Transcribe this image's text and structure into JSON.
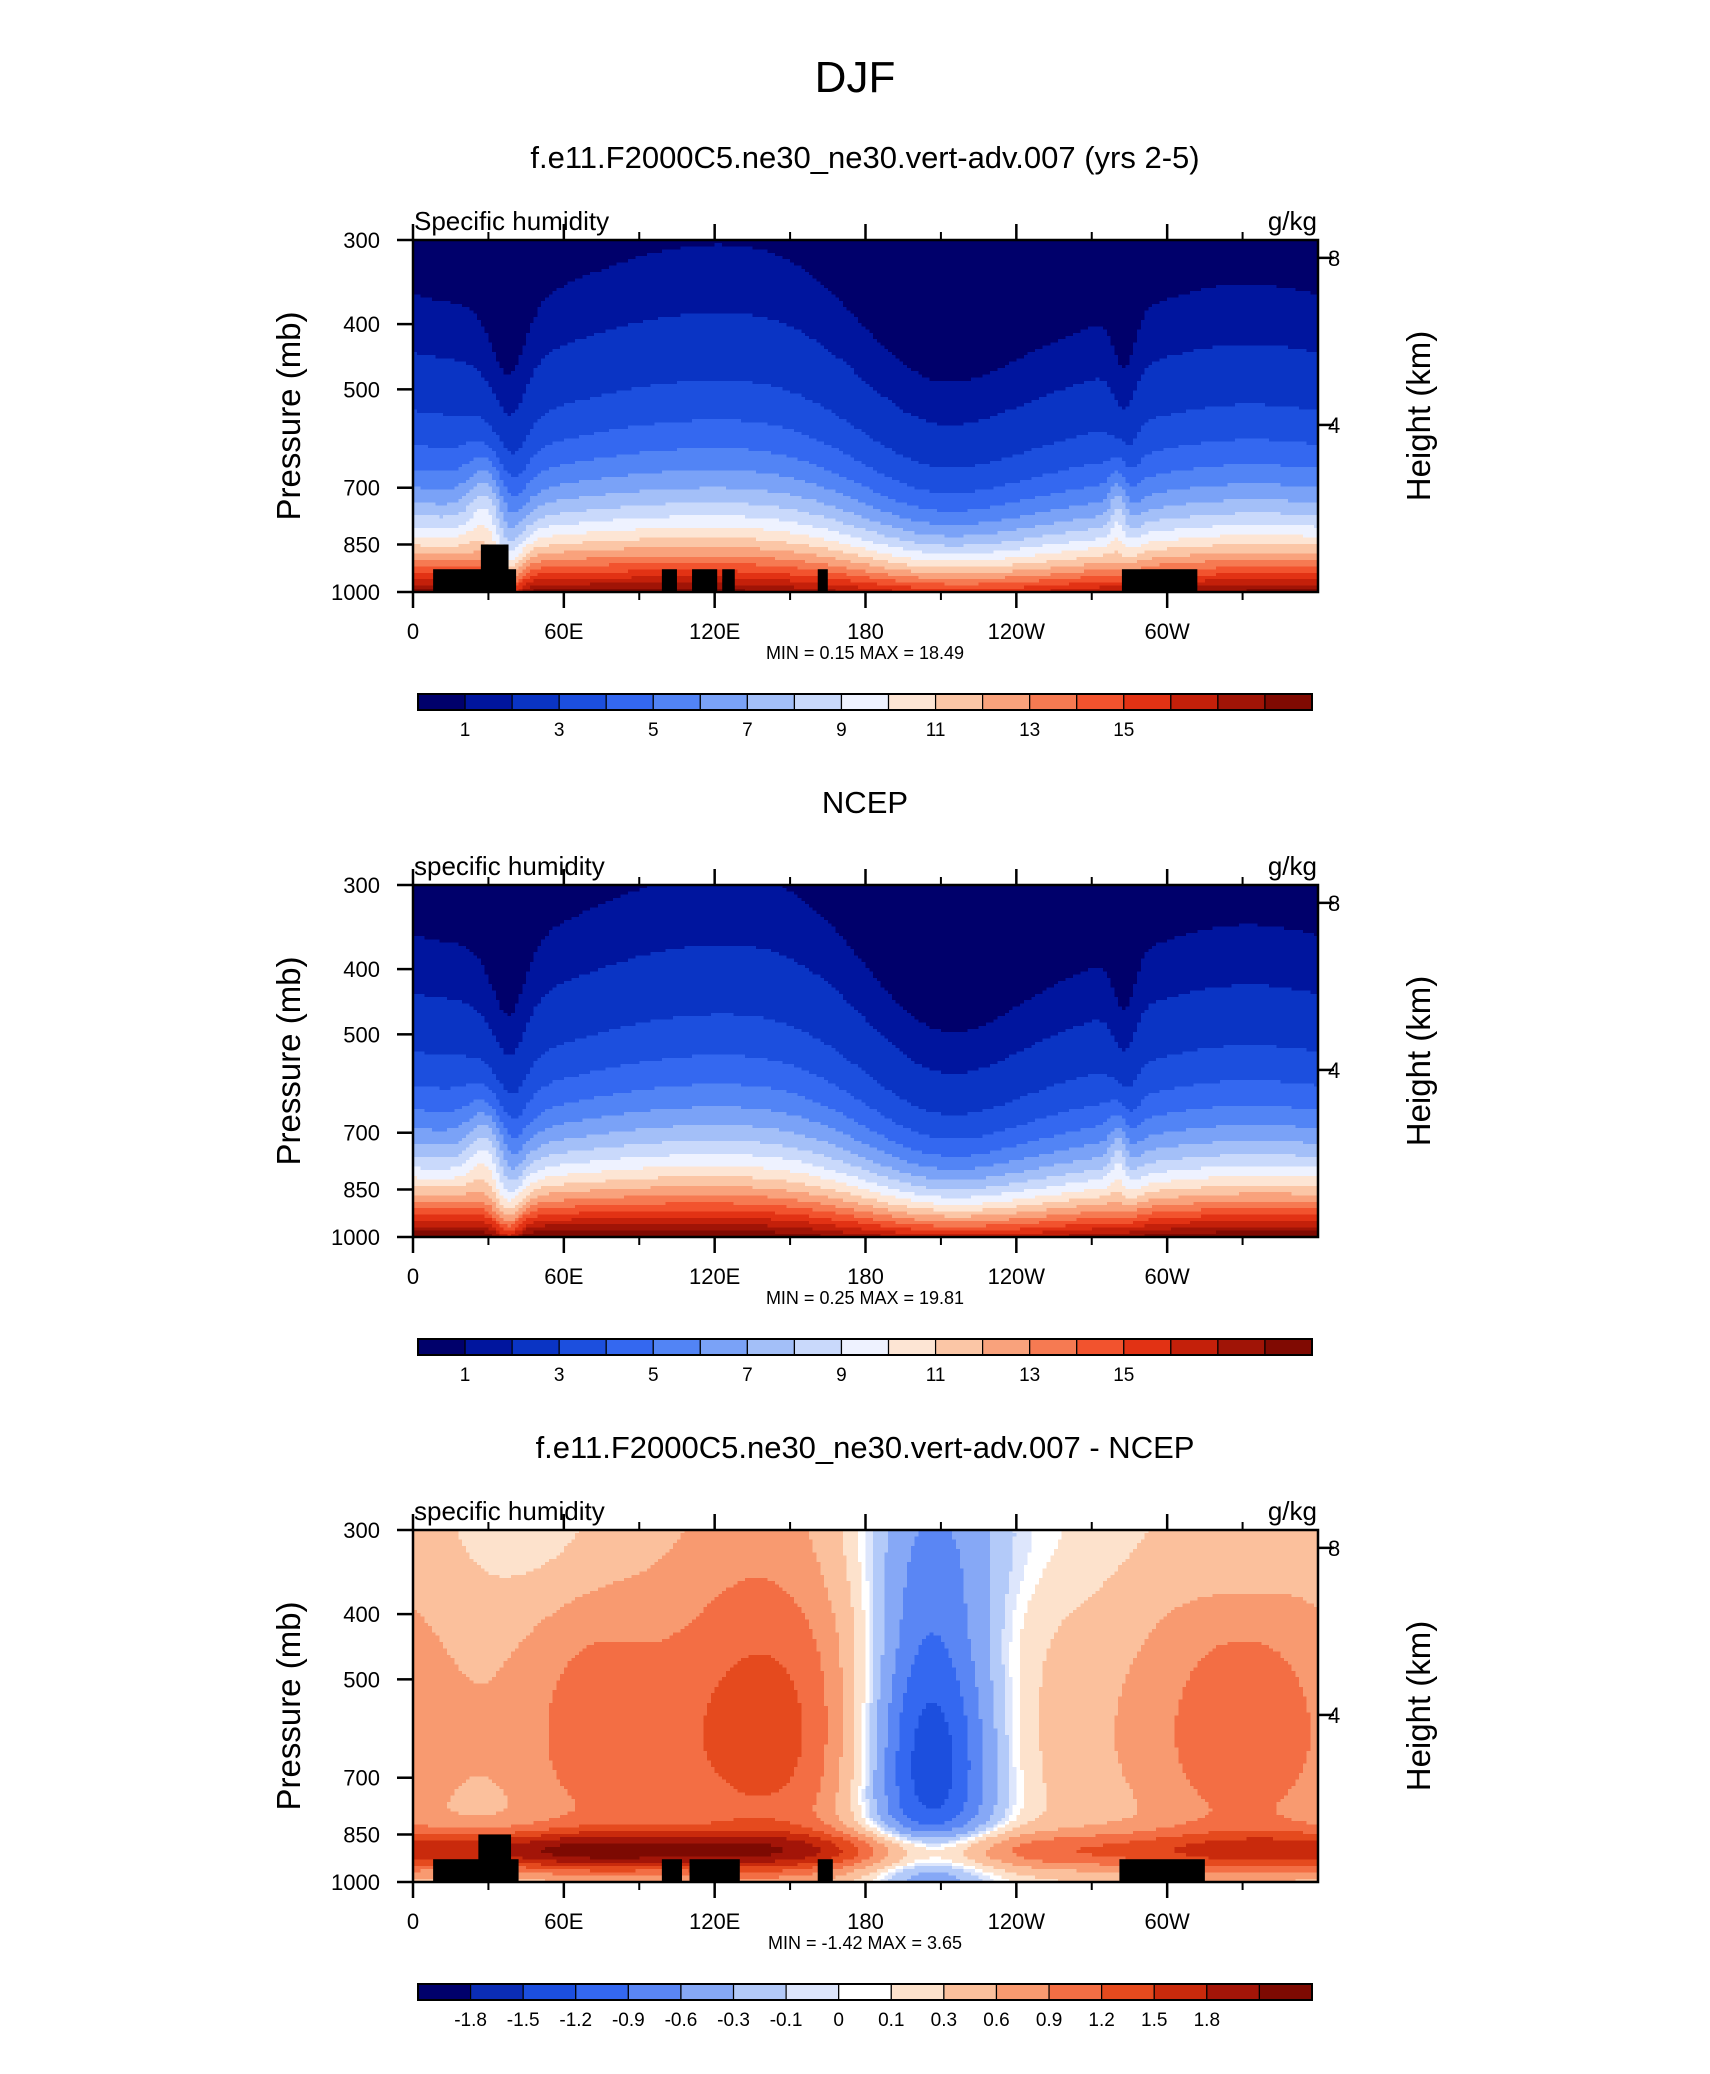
{
  "title": "DJF",
  "colors": {
    "abs_levels": [
      "#00006b",
      "#00159e",
      "#0a34c4",
      "#1c4fde",
      "#3468f0",
      "#5284f5",
      "#7aa2f7",
      "#a3bff8",
      "#c9d9fb",
      "#eef2ff",
      "#fde5d4",
      "#fbc6a6",
      "#f9a27c",
      "#f67a52",
      "#f2532e",
      "#e23214",
      "#c4200a",
      "#a01406",
      "#800a02"
    ],
    "diff_colors": [
      "#00006b",
      "#0b2db5",
      "#1c4fde",
      "#3468f0",
      "#5a86f4",
      "#86a8f6",
      "#b3caf9",
      "#dde6fc",
      "#ffffff",
      "#fde2cc",
      "#fbc09c",
      "#f89a70",
      "#f36e44",
      "#e54a1e",
      "#c92a0c",
      "#a31508",
      "#7d0a02"
    ]
  },
  "chart_data": [
    {
      "type": "heatmap",
      "title": "f.e11.F2000C5.ne30_ne30.vert-adv.007 (yrs 2-5)",
      "left_label": "Specific humidity",
      "right_label": "g/kg",
      "ylabel": "Pressure (mb)",
      "y2label": "Height (km)",
      "field": "model",
      "x_ticks": [
        "0",
        "60E",
        "120E",
        "180",
        "120W",
        "60W"
      ],
      "x_tick_lon": [
        0,
        60,
        120,
        180,
        240,
        300
      ],
      "xlim": [
        0,
        360
      ],
      "y_ticks": [
        "300",
        "400",
        "500",
        "700",
        "850",
        "1000"
      ],
      "y_tick_values": [
        300,
        400,
        500,
        700,
        850,
        1000
      ],
      "ylim": [
        1000,
        300
      ],
      "log_scale_y": true,
      "y2_ticks": [
        "8",
        "4"
      ],
      "y2_tick_values": [
        8,
        4
      ],
      "stats": "MIN =   0.15  MAX =  18.49",
      "colorbar_labels": [
        "1",
        "3",
        "5",
        "7",
        "9",
        "11",
        "13",
        "15"
      ],
      "levels": [
        0.5,
        1,
        2,
        3,
        4,
        5,
        6,
        7,
        8,
        9,
        10,
        11,
        12,
        13,
        14,
        15,
        16,
        17
      ],
      "masks": [
        {
          "lon": [
            8,
            41
          ],
          "p_top": 925
        },
        {
          "lon": [
            27,
            38
          ],
          "p_top": 850
        },
        {
          "lon": [
            99,
            105
          ],
          "p_top": 925
        },
        {
          "lon": [
            111,
            121
          ],
          "p_top": 925
        },
        {
          "lon": [
            123,
            128
          ],
          "p_top": 925
        },
        {
          "lon": [
            161,
            165
          ],
          "p_top": 925
        },
        {
          "lon": [
            282,
            312
          ],
          "p_top": 925
        }
      ]
    },
    {
      "type": "heatmap",
      "title": "NCEP",
      "left_label": "specific humidity",
      "right_label": "g/kg",
      "ylabel": "Pressure (mb)",
      "y2label": "Height (km)",
      "field": "obs",
      "x_ticks": [
        "0",
        "60E",
        "120E",
        "180",
        "120W",
        "60W"
      ],
      "x_tick_lon": [
        0,
        60,
        120,
        180,
        240,
        300
      ],
      "xlim": [
        0,
        360
      ],
      "y_ticks": [
        "300",
        "400",
        "500",
        "700",
        "850",
        "1000"
      ],
      "y_tick_values": [
        300,
        400,
        500,
        700,
        850,
        1000
      ],
      "ylim": [
        1000,
        300
      ],
      "log_scale_y": true,
      "y2_ticks": [
        "8",
        "4"
      ],
      "y2_tick_values": [
        8,
        4
      ],
      "stats": "MIN =   0.25  MAX =  19.81",
      "colorbar_labels": [
        "1",
        "3",
        "5",
        "7",
        "9",
        "11",
        "13",
        "15"
      ],
      "levels": [
        0.5,
        1,
        2,
        3,
        4,
        5,
        6,
        7,
        8,
        9,
        10,
        11,
        12,
        13,
        14,
        15,
        16,
        17
      ],
      "masks": []
    },
    {
      "type": "heatmap",
      "title": "f.e11.F2000C5.ne30_ne30.vert-adv.007 - NCEP",
      "left_label": "specific humidity",
      "right_label": "g/kg",
      "ylabel": "Pressure (mb)",
      "y2label": "Height (km)",
      "field": "diff",
      "x_ticks": [
        "0",
        "60E",
        "120E",
        "180",
        "120W",
        "60W"
      ],
      "x_tick_lon": [
        0,
        60,
        120,
        180,
        240,
        300
      ],
      "xlim": [
        0,
        360
      ],
      "y_ticks": [
        "300",
        "400",
        "500",
        "700",
        "850",
        "1000"
      ],
      "y_tick_values": [
        300,
        400,
        500,
        700,
        850,
        1000
      ],
      "ylim": [
        1000,
        300
      ],
      "log_scale_y": true,
      "y2_ticks": [
        "8",
        "4"
      ],
      "y2_tick_values": [
        8,
        4
      ],
      "stats": "MIN =  -1.42  MAX =   3.65",
      "colorbar_labels": [
        "-1.8",
        "-1.5",
        "-1.2",
        "-0.9",
        "-0.6",
        "-0.3",
        "-0.1",
        "0",
        "0.1",
        "0.3",
        "0.6",
        "0.9",
        "1.2",
        "1.5",
        "1.8"
      ],
      "levels": [
        -1.8,
        -1.5,
        -1.2,
        -0.9,
        -0.6,
        -0.3,
        -0.1,
        0,
        0.1,
        0.3,
        0.6,
        0.9,
        1.2,
        1.5,
        1.8,
        2.1
      ],
      "masks": [
        {
          "lon": [
            8,
            42
          ],
          "p_top": 925
        },
        {
          "lon": [
            26,
            39
          ],
          "p_top": 850
        },
        {
          "lon": [
            99,
            107
          ],
          "p_top": 925
        },
        {
          "lon": [
            110,
            130
          ],
          "p_top": 925
        },
        {
          "lon": [
            161,
            167
          ],
          "p_top": 925
        },
        {
          "lon": [
            281,
            315
          ],
          "p_top": 925
        }
      ]
    }
  ]
}
